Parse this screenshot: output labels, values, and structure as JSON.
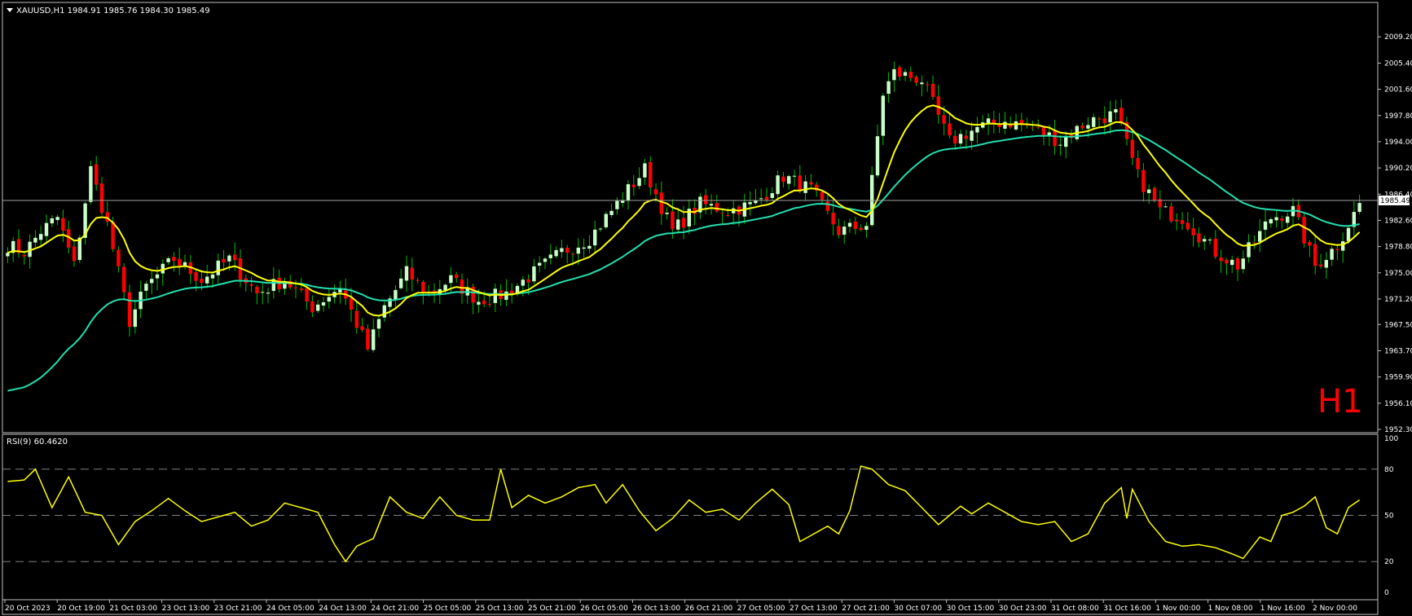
{
  "header": {
    "symbol_line": "XAUUSD,H1  1984.91 1985.76 1984.30 1985.49",
    "timeframe_badge": "H1"
  },
  "rsi_header": "RSI(9) 60.4620",
  "current_price_label": "1985.49",
  "colors": {
    "background": "#000000",
    "bull_candle": "#c8ffc8",
    "bear_candle": "#ff0000",
    "ma_fast": "#ffff00",
    "ma_slow": "#20e0b0",
    "rsi_line": "#ffff00",
    "grid_dash": "#808080",
    "text": "#ffffff",
    "badge": "#ff0000"
  },
  "chart_data": [
    {
      "type": "candlestick",
      "title": "XAUUSD,H1",
      "ylim": [
        1952.3,
        2011.0
      ],
      "price_ticks": [
        "2009.20",
        "2005.40",
        "2001.60",
        "1997.80",
        "1994.00",
        "1990.20",
        "1986.40",
        "1982.60",
        "1978.80",
        "1975.00",
        "1971.20",
        "1967.50",
        "1963.70",
        "1959.90",
        "1956.10",
        "1952.30"
      ],
      "x_labels": [
        "20 Oct 2023",
        "20 Oct 19:00",
        "21 Oct 03:00",
        "23 Oct 13:00",
        "23 Oct 21:00",
        "24 Oct 05:00",
        "24 Oct 13:00",
        "24 Oct 21:00",
        "25 Oct 05:00",
        "25 Oct 13:00",
        "25 Oct 21:00",
        "26 Oct 05:00",
        "26 Oct 13:00",
        "26 Oct 21:00",
        "27 Oct 05:00",
        "27 Oct 13:00",
        "27 Oct 21:00",
        "30 Oct 07:00",
        "30 Oct 15:00",
        "30 Oct 23:00",
        "31 Oct 08:00",
        "31 Oct 16:00",
        "1 Nov 00:00",
        "1 Nov 08:00",
        "1 Nov 16:00",
        "2 Nov 00:00"
      ],
      "current_price": 1985.49,
      "close_anchors": [
        [
          0,
          1979
        ],
        [
          3,
          1978
        ],
        [
          6,
          1981
        ],
        [
          9,
          1983
        ],
        [
          12,
          1976
        ],
        [
          15,
          1990
        ],
        [
          18,
          1982
        ],
        [
          22,
          1968
        ],
        [
          25,
          1973
        ],
        [
          30,
          1977
        ],
        [
          35,
          1974
        ],
        [
          40,
          1977
        ],
        [
          45,
          1972
        ],
        [
          50,
          1974
        ],
        [
          55,
          1970
        ],
        [
          60,
          1973
        ],
        [
          65,
          1964
        ],
        [
          68,
          1970
        ],
        [
          72,
          1975
        ],
        [
          76,
          1972
        ],
        [
          80,
          1974
        ],
        [
          85,
          1971
        ],
        [
          90,
          1972
        ],
        [
          95,
          1975
        ],
        [
          100,
          1978
        ],
        [
          105,
          1980
        ],
        [
          110,
          1985
        ],
        [
          115,
          1990
        ],
        [
          120,
          1981
        ],
        [
          125,
          1985
        ],
        [
          130,
          1984
        ],
        [
          135,
          1985
        ],
        [
          140,
          1989
        ],
        [
          145,
          1987
        ],
        [
          150,
          1981
        ],
        [
          155,
          1982
        ],
        [
          158,
          2001
        ],
        [
          160,
          2004
        ],
        [
          165,
          2003
        ],
        [
          170,
          1994
        ],
        [
          175,
          1996
        ],
        [
          180,
          1997
        ],
        [
          185,
          1996
        ],
        [
          190,
          1994
        ],
        [
          195,
          1997
        ],
        [
          200,
          1998
        ],
        [
          204,
          1989
        ],
        [
          208,
          1984
        ],
        [
          212,
          1983
        ],
        [
          218,
          1978
        ],
        [
          222,
          1976
        ],
        [
          228,
          1983
        ],
        [
          232,
          1984
        ],
        [
          236,
          1976
        ],
        [
          240,
          1979
        ],
        [
          244,
          1985
        ]
      ],
      "note_series": [
        "ma_fast",
        "ma_slow"
      ]
    },
    {
      "type": "line",
      "title": "RSI(9) 60.4620",
      "ylim": [
        0,
        100
      ],
      "levels": [
        20,
        50,
        80
      ],
      "axis_ticks": [
        "100",
        "80",
        "50",
        "20",
        "0"
      ],
      "last_value": 60.462,
      "anchors": [
        [
          0,
          72
        ],
        [
          3,
          73
        ],
        [
          5,
          80
        ],
        [
          8,
          55
        ],
        [
          11,
          75
        ],
        [
          14,
          52
        ],
        [
          17,
          50
        ],
        [
          20,
          31
        ],
        [
          23,
          46
        ],
        [
          26,
          53
        ],
        [
          29,
          61
        ],
        [
          32,
          53
        ],
        [
          35,
          46
        ],
        [
          38,
          49
        ],
        [
          41,
          52
        ],
        [
          44,
          43
        ],
        [
          47,
          47
        ],
        [
          50,
          58
        ],
        [
          53,
          55
        ],
        [
          56,
          52
        ],
        [
          59,
          31
        ],
        [
          61,
          20
        ],
        [
          63,
          30
        ],
        [
          66,
          35
        ],
        [
          69,
          62
        ],
        [
          72,
          52
        ],
        [
          75,
          48
        ],
        [
          78,
          62
        ],
        [
          81,
          50
        ],
        [
          84,
          47
        ],
        [
          87,
          47
        ],
        [
          89,
          80
        ],
        [
          91,
          55
        ],
        [
          94,
          63
        ],
        [
          97,
          58
        ],
        [
          100,
          62
        ],
        [
          103,
          68
        ],
        [
          106,
          70
        ],
        [
          108,
          58
        ],
        [
          111,
          70
        ],
        [
          114,
          53
        ],
        [
          117,
          40
        ],
        [
          120,
          48
        ],
        [
          123,
          60
        ],
        [
          126,
          52
        ],
        [
          129,
          54
        ],
        [
          132,
          47
        ],
        [
          135,
          58
        ],
        [
          138,
          67
        ],
        [
          141,
          57
        ],
        [
          143,
          33
        ],
        [
          145,
          37
        ],
        [
          148,
          43
        ],
        [
          150,
          38
        ],
        [
          152,
          53
        ],
        [
          154,
          82
        ],
        [
          156,
          80
        ],
        [
          159,
          70
        ],
        [
          162,
          66
        ],
        [
          165,
          55
        ],
        [
          168,
          44
        ],
        [
          170,
          50
        ],
        [
          172,
          56
        ],
        [
          174,
          51
        ],
        [
          177,
          58
        ],
        [
          180,
          52
        ],
        [
          183,
          46
        ],
        [
          186,
          44
        ],
        [
          189,
          46
        ],
        [
          192,
          33
        ],
        [
          195,
          38
        ],
        [
          198,
          58
        ],
        [
          201,
          68
        ],
        [
          202,
          48
        ],
        [
          203,
          67
        ],
        [
          206,
          46
        ],
        [
          209,
          33
        ],
        [
          212,
          30
        ],
        [
          215,
          31
        ],
        [
          218,
          29
        ],
        [
          221,
          25
        ],
        [
          223,
          22
        ],
        [
          226,
          36
        ],
        [
          228,
          33
        ],
        [
          230,
          50
        ],
        [
          232,
          52
        ],
        [
          234,
          56
        ],
        [
          236,
          62
        ],
        [
          238,
          42
        ],
        [
          240,
          38
        ],
        [
          242,
          55
        ],
        [
          244,
          60
        ]
      ]
    }
  ]
}
